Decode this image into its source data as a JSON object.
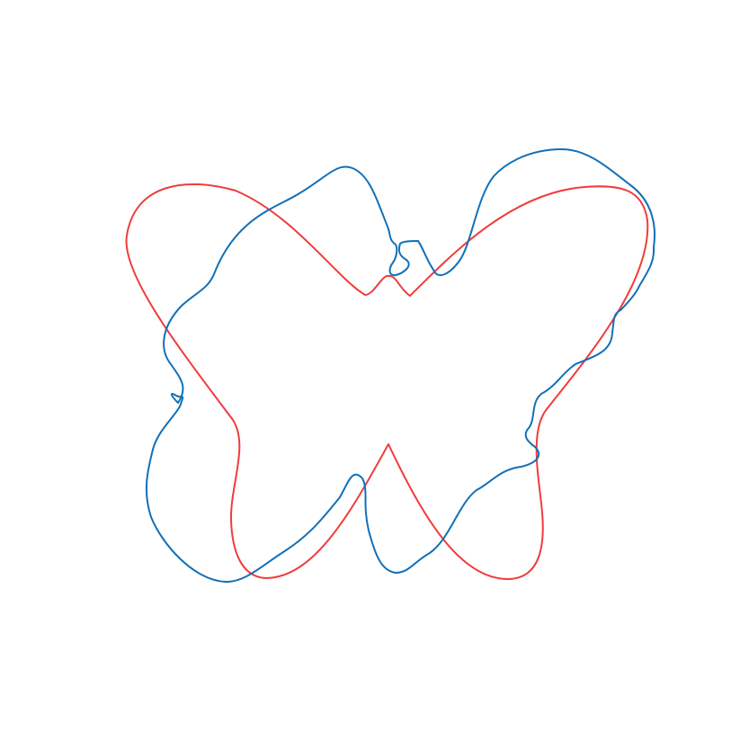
{
  "figure": {
    "background_color": "#ffffff",
    "axes_visible": false,
    "curves": [
      {
        "id": "reference-butterfly-curve",
        "color": "#f03c3c"
      },
      {
        "id": "perturbed-butterfly-curve",
        "color": "#1170b8"
      }
    ]
  }
}
